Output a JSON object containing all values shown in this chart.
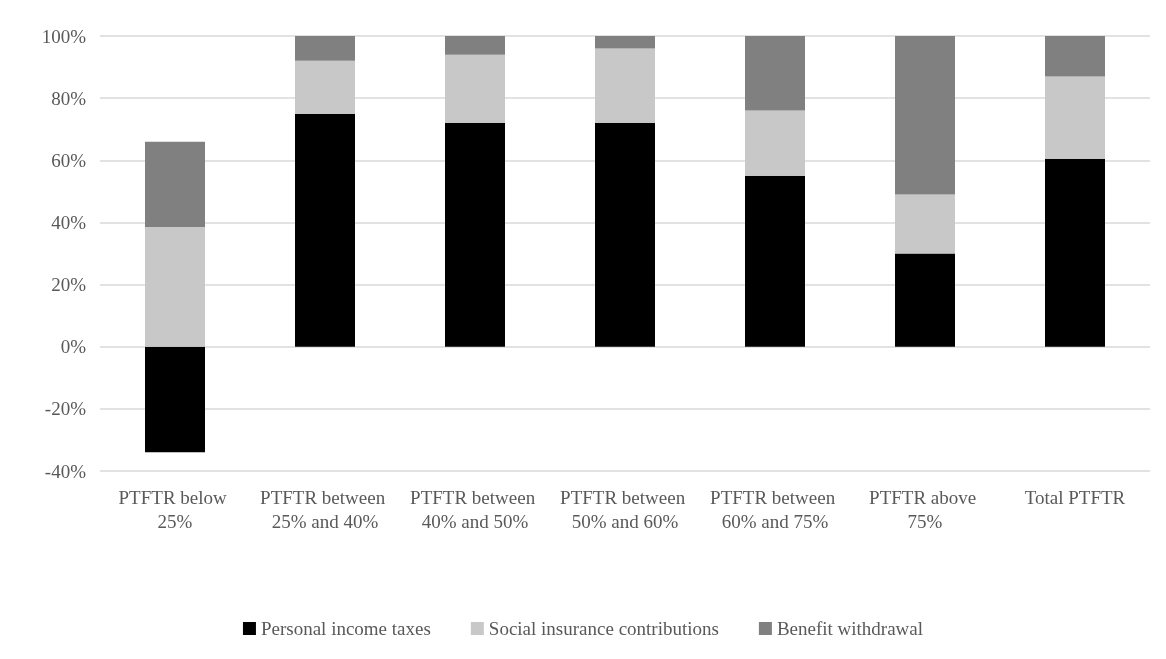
{
  "chart_data": {
    "type": "bar",
    "stacked": true,
    "categories": [
      "PTFTR below 25%",
      "PTFTR between 25% and 40%",
      "PTFTR between 40% and 50%",
      "PTFTR between 50% and 60%",
      "PTFTR between 60% and 75%",
      "PTFTR above 75%",
      "Total PTFTR"
    ],
    "series": [
      {
        "name": "Personal income taxes",
        "color": "#000000",
        "values": [
          -34,
          75,
          72,
          72,
          55,
          30,
          60.5
        ]
      },
      {
        "name": "Social insurance contributions",
        "color": "#c8c8c8",
        "values": [
          38.5,
          17,
          22,
          24,
          21,
          19,
          26.5
        ]
      },
      {
        "name": "Benefit withdrawal",
        "color": "#808080",
        "values": [
          27.5,
          8,
          6,
          4,
          24,
          51,
          13
        ]
      }
    ],
    "ylim": [
      -40,
      100
    ],
    "yticks": [
      {
        "value": -40,
        "label": "-40%"
      },
      {
        "value": -20,
        "label": "-20%"
      },
      {
        "value": 0,
        "label": "0%"
      },
      {
        "value": 20,
        "label": "20%"
      },
      {
        "value": 40,
        "label": "40%"
      },
      {
        "value": 60,
        "label": "60%"
      },
      {
        "value": 80,
        "label": "80%"
      },
      {
        "value": 100,
        "label": "100%"
      }
    ],
    "grid": "y",
    "legend": "bottom"
  }
}
